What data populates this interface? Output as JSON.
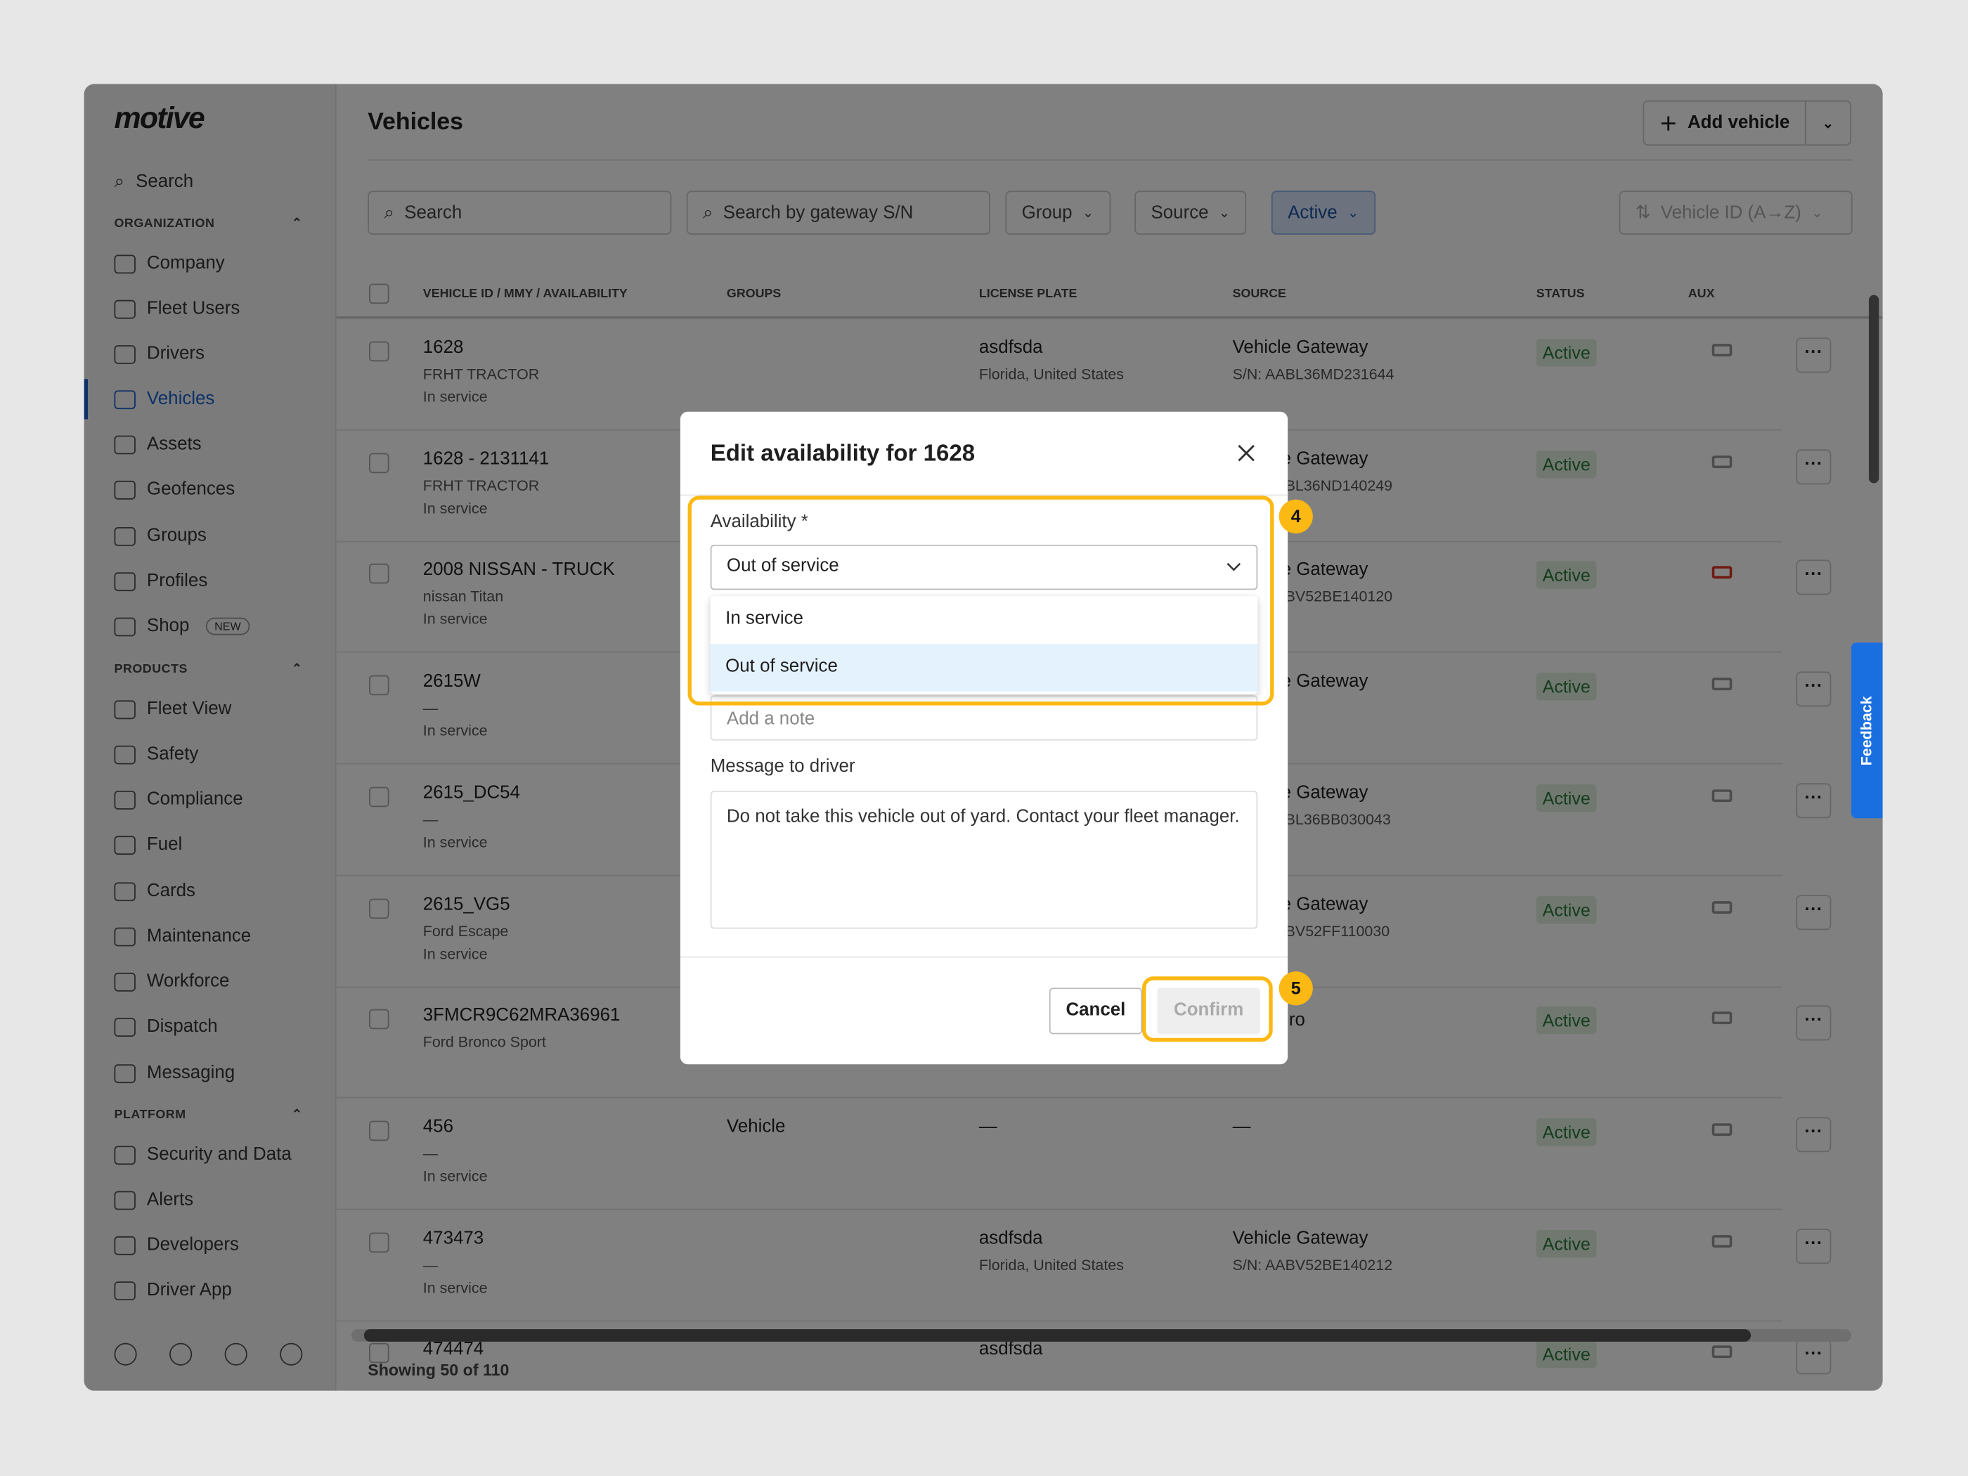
{
  "app": {
    "logo": "motive",
    "page_title": "Vehicles"
  },
  "sidebar": {
    "search": "Search",
    "sections": [
      {
        "label": "ORGANIZATION"
      },
      {
        "label": "PRODUCTS"
      },
      {
        "label": "PLATFORM"
      }
    ],
    "items": [
      {
        "label": "Company",
        "icon": "building-icon"
      },
      {
        "label": "Fleet Users",
        "icon": "monitor-icon"
      },
      {
        "label": "Drivers",
        "icon": "user-icon"
      },
      {
        "label": "Vehicles",
        "icon": "truck-icon",
        "active": true
      },
      {
        "label": "Assets",
        "icon": "trailer-icon"
      },
      {
        "label": "Geofences",
        "icon": "geofence-icon"
      },
      {
        "label": "Groups",
        "icon": "groups-icon"
      },
      {
        "label": "Profiles",
        "icon": "profile-icon"
      },
      {
        "label": "Shop",
        "icon": "bag-icon",
        "badge": "NEW"
      },
      {
        "label": "Fleet View",
        "icon": "map-icon"
      },
      {
        "label": "Safety",
        "icon": "shield-icon"
      },
      {
        "label": "Compliance",
        "icon": "compliance-icon"
      },
      {
        "label": "Fuel",
        "icon": "fuel-icon"
      },
      {
        "label": "Cards",
        "icon": "card-icon"
      },
      {
        "label": "Maintenance",
        "icon": "wrench-icon"
      },
      {
        "label": "Workforce",
        "icon": "user-icon"
      },
      {
        "label": "Dispatch",
        "icon": "dispatch-icon"
      },
      {
        "label": "Messaging",
        "icon": "message-icon"
      },
      {
        "label": "Security and Data",
        "icon": "shield-lock-icon"
      },
      {
        "label": "Alerts",
        "icon": "alert-icon"
      },
      {
        "label": "Developers",
        "icon": "code-icon"
      },
      {
        "label": "Driver App",
        "icon": "phone-icon"
      }
    ]
  },
  "toolbar": {
    "add_vehicle": "Add vehicle",
    "search_placeholder": "Search",
    "gateway_placeholder": "Search by gateway S/N",
    "group": "Group",
    "source": "Source",
    "active": "Active",
    "sort": "Vehicle ID (A→Z)"
  },
  "table": {
    "columns": [
      "VEHICLE ID / MMY / AVAILABILITY",
      "GROUPS",
      "LICENSE PLATE",
      "SOURCE",
      "STATUS",
      "AUX"
    ],
    "rows": [
      {
        "id": "1628",
        "mmy": "FRHT TRACTOR",
        "avail": "In service",
        "group": "",
        "plate": "asdfsda",
        "plate2": "Florida, United States",
        "src": "Vehicle Gateway",
        "src2": "S/N: AABL36MD231644",
        "status": "Active"
      },
      {
        "id": "1628 - 2131141",
        "mmy": "FRHT TRACTOR",
        "avail": "In service",
        "group": "",
        "plate": "",
        "plate2": "",
        "src": "Vehicle Gateway",
        "src2": "S/N: AABL36ND140249",
        "status": "Active"
      },
      {
        "id": "2008 NISSAN - TRUCK",
        "mmy": "nissan Titan",
        "avail": "In service",
        "group": "",
        "plate": "",
        "plate2": "",
        "src": "Vehicle Gateway",
        "src2": "S/N: AABV52BE140120",
        "status": "Active",
        "aux_alert": true
      },
      {
        "id": "2615W",
        "mmy": "—",
        "avail": "In service",
        "group": "",
        "plate": "",
        "plate2": "",
        "src": "Vehicle Gateway",
        "src2": "148739",
        "status": "Active"
      },
      {
        "id": "2615_DC54",
        "mmy": "—",
        "avail": "In service",
        "group": "",
        "plate": "",
        "plate2": "",
        "src": "Vehicle Gateway",
        "src2": "S/N: AABL36BB030043",
        "status": "Active"
      },
      {
        "id": "2615_VG5",
        "mmy": "Ford Escape",
        "avail": "In service",
        "group": "",
        "plate": "",
        "plate2": "",
        "src": "Vehicle Gateway",
        "src2": "S/N: AABV52FF110030",
        "status": "Active"
      },
      {
        "id": "3FMCR9C62MRA36961",
        "mmy": "Ford Bronco Sport",
        "avail": "",
        "group": "",
        "plate": "",
        "plate2": "",
        "src": "ro",
        "src2": "",
        "status": "Active"
      },
      {
        "id": "456",
        "mmy": "—",
        "avail": "In service",
        "group": "Vehicle",
        "plate": "—",
        "plate2": "",
        "src": "—",
        "src2": "",
        "status": "Active"
      },
      {
        "id": "473473",
        "mmy": "—",
        "avail": "In service",
        "group": "",
        "plate": "asdfsda",
        "plate2": "Florida, United States",
        "src": "Vehicle Gateway",
        "src2": "S/N: AABV52BE140212",
        "status": "Active"
      },
      {
        "id": "474474",
        "mmy": "",
        "avail": "",
        "group": "",
        "plate": "asdfsda",
        "plate2": "",
        "src": "",
        "src2": "",
        "status": "Active"
      }
    ],
    "footer": "Showing 50 of 110"
  },
  "feedback": "Feedback",
  "modal": {
    "title": "Edit availability for 1628",
    "availability_label": "Availability *",
    "selected": "Out of service",
    "options": [
      "In service",
      "Out of service"
    ],
    "note_placeholder": "Add a note",
    "message_label": "Message to driver",
    "message": "Do not take this vehicle out of yard. Contact your fleet manager.",
    "cancel": "Cancel",
    "confirm": "Confirm"
  },
  "annotations": {
    "step_a": "4",
    "step_b": "5",
    "color": "#fcb813"
  }
}
